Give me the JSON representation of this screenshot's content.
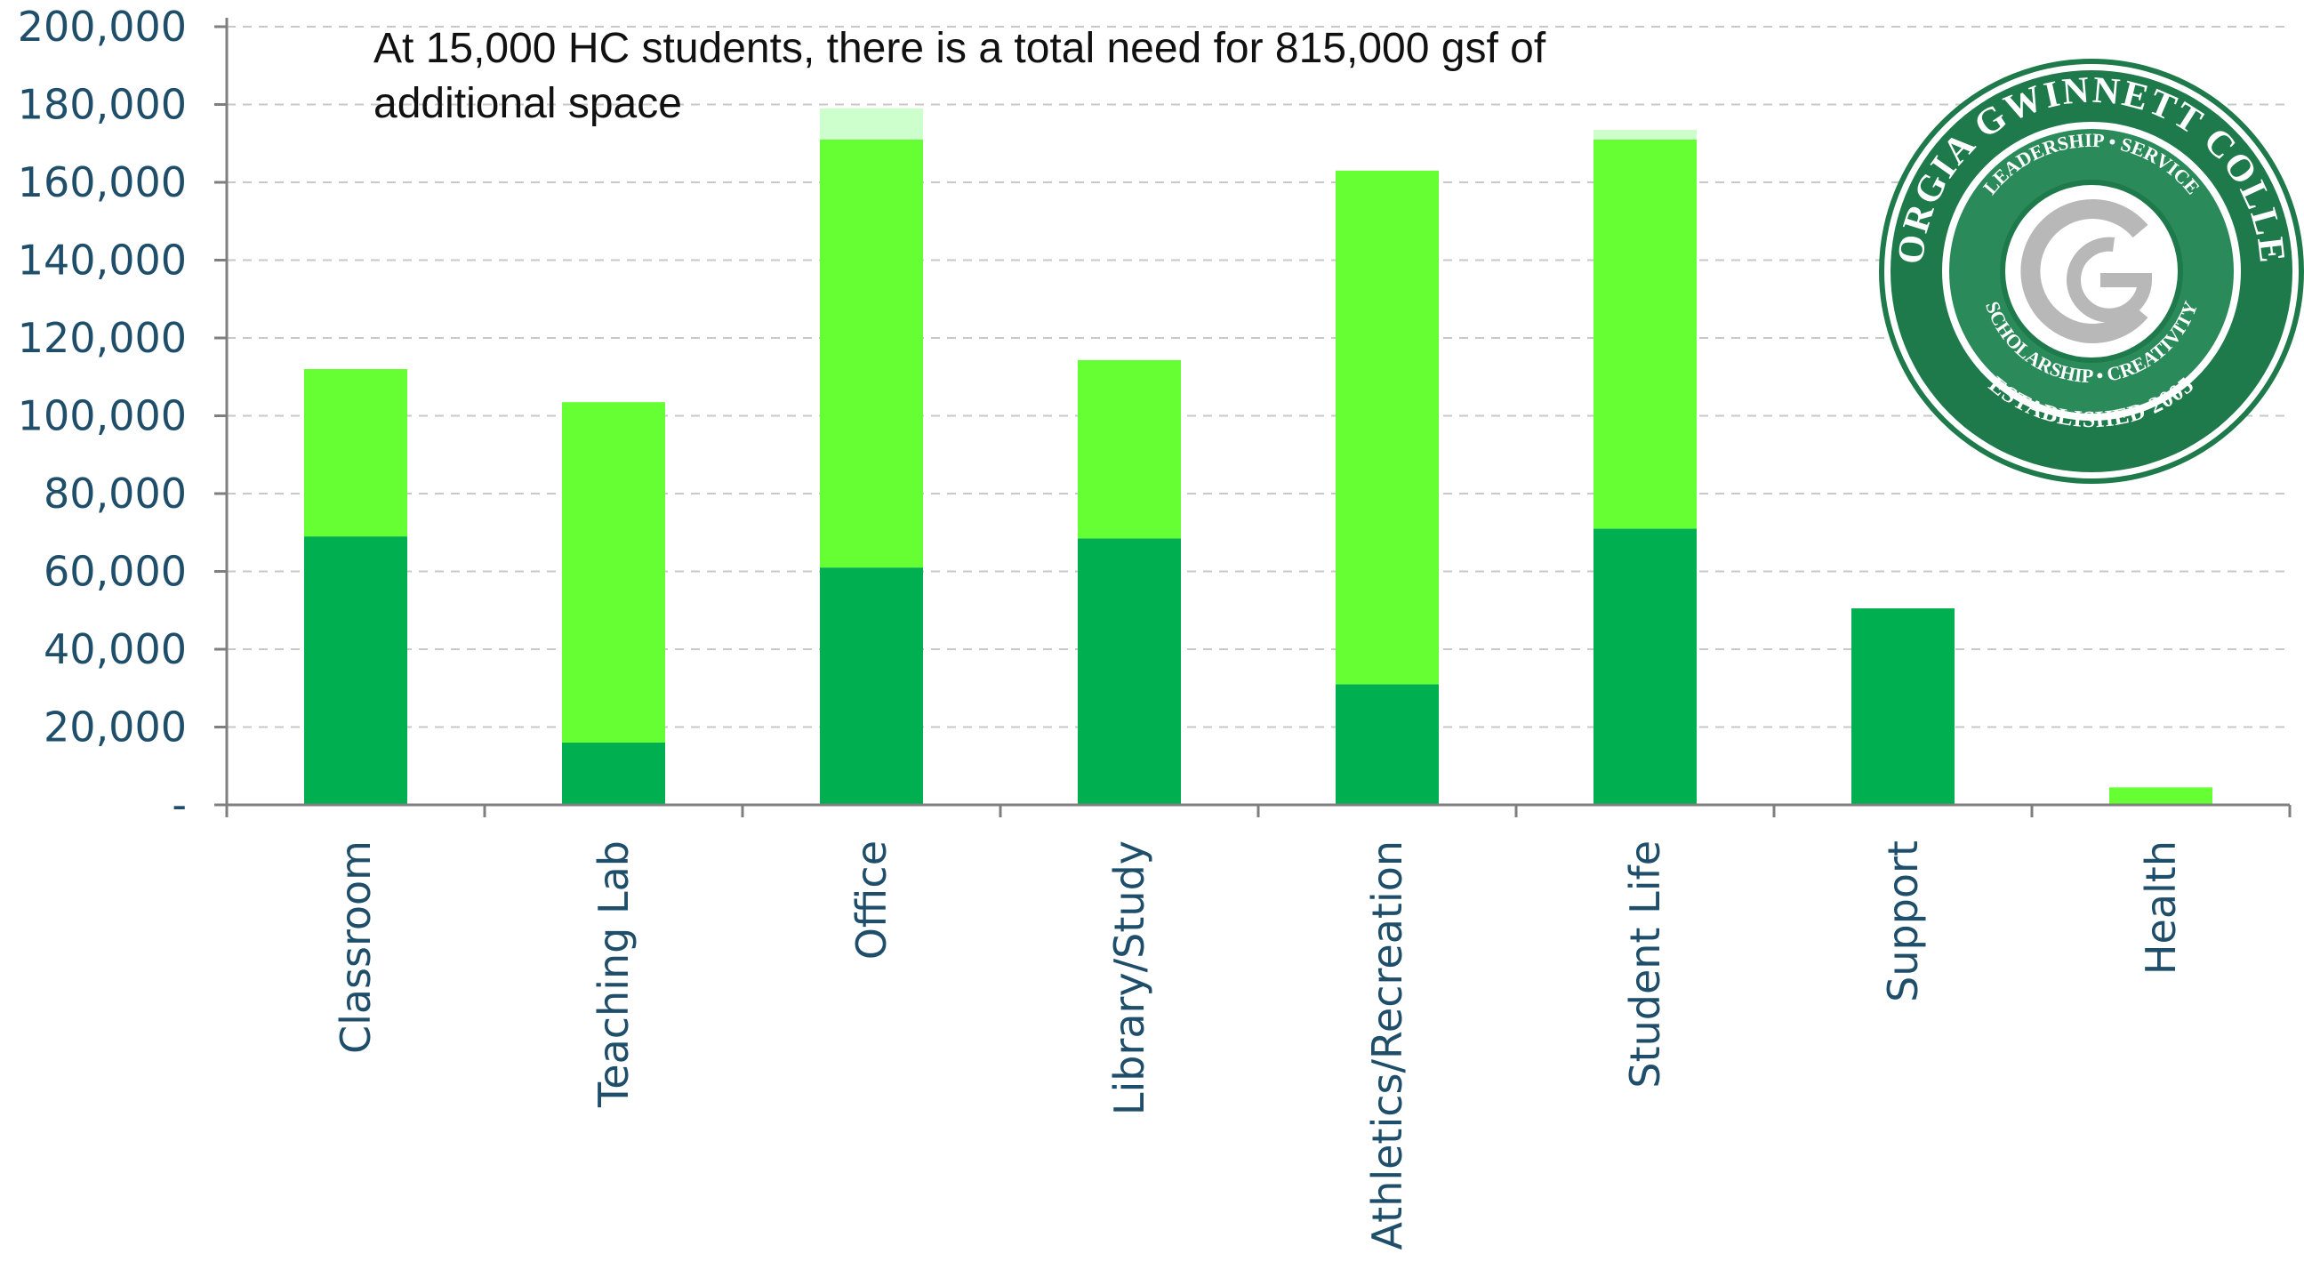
{
  "annotation": {
    "line1": "At 15,000 HC students, there is a total need for 815,000 gsf of",
    "line2": "additional space"
  },
  "logo": {
    "name": "GEORGIA GWINNETT COLLEGE",
    "values": [
      "LEADERSHIP",
      "SERVICE",
      "SCHOLARSHIP",
      "CREATIVITY"
    ],
    "established": "ESTABLISHED 2005",
    "monogram": "G",
    "colors": {
      "ring": "#1e7a4a",
      "inner": "#2a8a5a",
      "monogram": "#b8b8b8"
    }
  },
  "chart_data": {
    "type": "bar",
    "stacked": true,
    "categories": [
      "Classroom",
      "Teaching Lab",
      "Office",
      "Library/Study",
      "Athletics/Recreation",
      "Student Life",
      "Support",
      "Health"
    ],
    "series": [
      {
        "values": [
          69000,
          16000,
          61000,
          68500,
          31000,
          71000,
          50500,
          0
        ],
        "color": "#00b050"
      },
      {
        "values": [
          43000,
          87500,
          110000,
          45800,
          132000,
          100000,
          0,
          4500
        ],
        "color": "#66ff33"
      },
      {
        "values": [
          0,
          0,
          8000,
          0,
          0,
          2500,
          0,
          0
        ],
        "color": "#ccffcc"
      }
    ],
    "ylim": [
      0,
      200000
    ],
    "yticks": [
      0,
      20000,
      40000,
      60000,
      80000,
      100000,
      120000,
      140000,
      160000,
      180000,
      200000
    ],
    "ytick_labels": [
      "-",
      "20,000",
      "40,000",
      "60,000",
      "80,000",
      "100,000",
      "120,000",
      "140,000",
      "160,000",
      "180,000",
      "200,000"
    ],
    "grid": true,
    "xlabel": "",
    "ylabel": ""
  }
}
